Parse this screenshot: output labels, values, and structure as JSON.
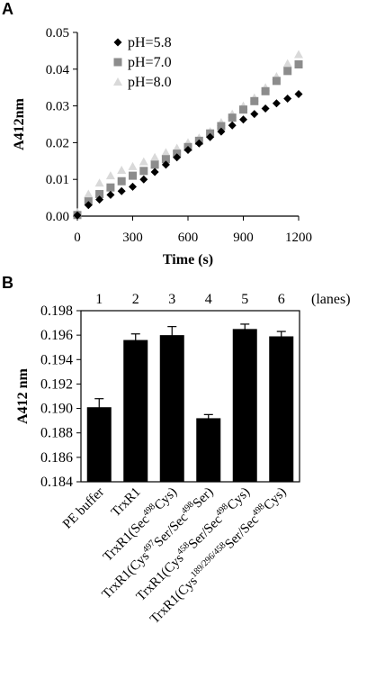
{
  "chart_data": [
    {
      "panel": "A",
      "type": "scatter",
      "xlabel": "Time (s)",
      "ylabel": "A412nm",
      "xlim": [
        0,
        1200
      ],
      "ylim": [
        0,
        0.05
      ],
      "xticks": [
        "0",
        "300",
        "600",
        "900",
        "1200"
      ],
      "yticks": [
        "0.00",
        "0.01",
        "0.02",
        "0.03",
        "0.04",
        "0.05"
      ],
      "x": [
        0,
        60,
        120,
        180,
        240,
        300,
        360,
        420,
        480,
        540,
        600,
        660,
        720,
        780,
        840,
        900,
        960,
        1020,
        1080,
        1140,
        1200
      ],
      "series": [
        {
          "name": "pH=5.8",
          "marker": "diamond",
          "color": "#000000",
          "values": [
            0.0002,
            0.003,
            0.0045,
            0.0058,
            0.0068,
            0.008,
            0.01,
            0.012,
            0.014,
            0.016,
            0.018,
            0.0198,
            0.0215,
            0.023,
            0.0247,
            0.0263,
            0.0278,
            0.0293,
            0.0307,
            0.032,
            0.0332
          ]
        },
        {
          "name": "pH=7.0",
          "marker": "square",
          "color": "#8c8c8c",
          "values": [
            0.0003,
            0.004,
            0.006,
            0.0078,
            0.0095,
            0.011,
            0.0123,
            0.014,
            0.0155,
            0.017,
            0.0188,
            0.0205,
            0.0225,
            0.0245,
            0.0268,
            0.029,
            0.0313,
            0.034,
            0.0368,
            0.0395,
            0.0413
          ]
        },
        {
          "name": "pH=8.0",
          "marker": "triangle",
          "color": "#d9d9d9",
          "values": [
            0.001,
            0.006,
            0.009,
            0.011,
            0.0125,
            0.0135,
            0.0148,
            0.016,
            0.0173,
            0.0185,
            0.02,
            0.0213,
            0.023,
            0.0255,
            0.0278,
            0.03,
            0.0322,
            0.035,
            0.038,
            0.0415,
            0.044
          ]
        }
      ],
      "legend_position": "top-left"
    },
    {
      "panel": "B",
      "type": "bar",
      "ylabel": "A412 nm",
      "ylim": [
        0.184,
        0.198
      ],
      "yticks": [
        "0.184",
        "0.186",
        "0.188",
        "0.190",
        "0.192",
        "0.194",
        "0.196",
        "0.198"
      ],
      "lane_numbers": [
        "1",
        "2",
        "3",
        "4",
        "5",
        "6"
      ],
      "lanes_label": "(lanes)",
      "categories": [
        "PE buffer",
        "TrxR1",
        "TrxR1(Sec498Cys)",
        "TrxR1(Cys497Ser/Sec498Ser)",
        "TrxR1(Cys458Ser/Sec498Cys)",
        "TrxR1(Cys189/296/458Ser/Sec498Cys)"
      ],
      "category_parts": [
        [
          {
            "t": "PE buffer",
            "s": false
          }
        ],
        [
          {
            "t": "TrxR1",
            "s": false
          }
        ],
        [
          {
            "t": "TrxR1(Sec",
            "s": false
          },
          {
            "t": "498",
            "s": true
          },
          {
            "t": "Cys)",
            "s": false
          }
        ],
        [
          {
            "t": "TrxR1(Cys",
            "s": false
          },
          {
            "t": "497",
            "s": true
          },
          {
            "t": "Ser/Sec",
            "s": false
          },
          {
            "t": "498",
            "s": true
          },
          {
            "t": "Ser)",
            "s": false
          }
        ],
        [
          {
            "t": "TrxR1(Cys",
            "s": false
          },
          {
            "t": "458",
            "s": true
          },
          {
            "t": "Ser/Sec",
            "s": false
          },
          {
            "t": "498",
            "s": true
          },
          {
            "t": "Cys)",
            "s": false
          }
        ],
        [
          {
            "t": "TrxR1(Cys",
            "s": false
          },
          {
            "t": "189/296/458",
            "s": true
          },
          {
            "t": "Ser/Sec",
            "s": false
          },
          {
            "t": "498",
            "s": true
          },
          {
            "t": "Cys)",
            "s": false
          }
        ]
      ],
      "values": [
        0.1901,
        0.1956,
        0.196,
        0.1892,
        0.1965,
        0.1959
      ],
      "errors": [
        0.0007,
        0.0005,
        0.0007,
        0.0003,
        0.0004,
        0.0004
      ],
      "bar_color": "#000000"
    }
  ],
  "panel_labels": [
    "A",
    "B"
  ]
}
